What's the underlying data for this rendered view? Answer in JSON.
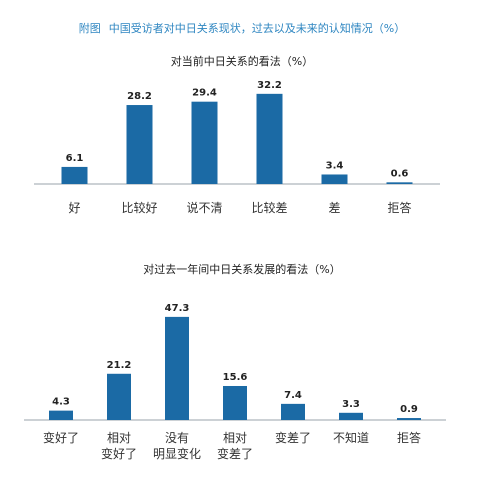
{
  "figure": {
    "prefix": "附图",
    "title": "中国受访者对中日关系现状，过去以及未来的认知情况（%）"
  },
  "colors": {
    "bar": "#1b6aa5",
    "title_accent": "#2e86c1"
  },
  "chart_data": [
    {
      "type": "bar",
      "title": "对当前中日关系的看法（%）",
      "categories": [
        [
          "好"
        ],
        [
          "比较好"
        ],
        [
          "说不清"
        ],
        [
          "比较差"
        ],
        [
          "差"
        ],
        [
          "拒答"
        ]
      ],
      "values": [
        6.1,
        28.2,
        29.4,
        32.2,
        3.4,
        0.6
      ],
      "value_labels": [
        "6.1",
        "28.2",
        "29.4",
        "32.2",
        "3.4",
        "0.6"
      ],
      "ylim": [
        0,
        35
      ],
      "grid": false,
      "legend": "none"
    },
    {
      "type": "bar",
      "title": "对过去一年间中日关系发展的看法（%）",
      "categories": [
        [
          "变好了"
        ],
        [
          "相对",
          "变好了"
        ],
        [
          "没有",
          "明显变化"
        ],
        [
          "相对",
          "变差了"
        ],
        [
          "变差了"
        ],
        [
          "不知道"
        ],
        [
          "拒答"
        ]
      ],
      "values": [
        4.3,
        21.2,
        47.3,
        15.6,
        7.4,
        3.3,
        0.9
      ],
      "value_labels": [
        "4.3",
        "21.2",
        "47.3",
        "15.6",
        "7.4",
        "3.3",
        "0.9"
      ],
      "ylim": [
        0,
        50
      ],
      "grid": false,
      "legend": "none"
    }
  ]
}
